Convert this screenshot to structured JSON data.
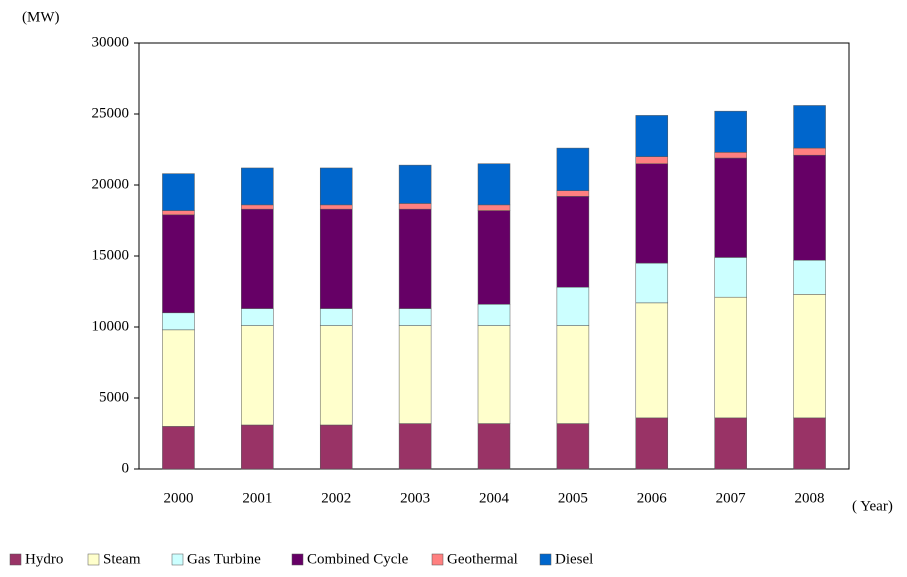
{
  "chart_data": {
    "type": "stacked_bar",
    "y_unit": "(MW)",
    "x_unit": "( Year)",
    "categories": [
      "2000",
      "2001",
      "2002",
      "2003",
      "2004",
      "2005",
      "2006",
      "2007",
      "2008"
    ],
    "series": [
      {
        "name": "Hydro",
        "color": "#993366",
        "values": [
          3000,
          3100,
          3100,
          3200,
          3200,
          3200,
          3600,
          3600,
          3600
        ]
      },
      {
        "name": "Steam",
        "color": "#ffffcc",
        "values": [
          6800,
          7000,
          7000,
          6900,
          6900,
          6900,
          8100,
          8500,
          8700
        ]
      },
      {
        "name": "Gas Turbine",
        "color": "#ccffff",
        "values": [
          1200,
          1200,
          1200,
          1200,
          1500,
          2700,
          2800,
          2800,
          2400
        ]
      },
      {
        "name": "Combined Cycle",
        "color": "#660066",
        "values": [
          6900,
          7000,
          7000,
          7000,
          6600,
          6400,
          7000,
          7000,
          7400
        ]
      },
      {
        "name": "Geothermal",
        "color": "#ff8080",
        "values": [
          300,
          300,
          300,
          400,
          400,
          400,
          500,
          400,
          500
        ]
      },
      {
        "name": "Diesel",
        "color": "#0066cc",
        "values": [
          2600,
          2600,
          2600,
          2700,
          2900,
          3000,
          2900,
          2900,
          3000
        ]
      }
    ],
    "ylim": [
      0,
      30000
    ],
    "yticks": [
      0,
      5000,
      10000,
      15000,
      20000,
      25000,
      30000
    ]
  }
}
